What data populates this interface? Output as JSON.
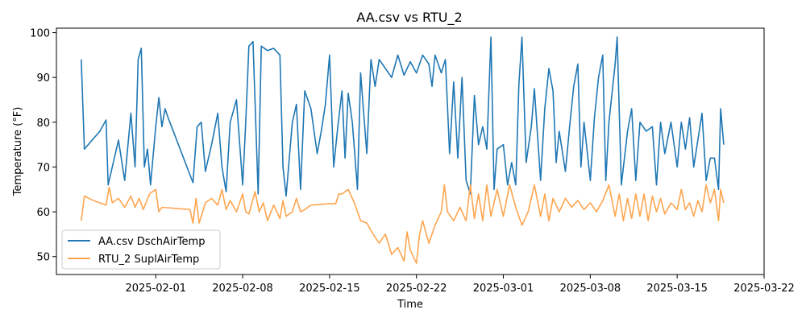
{
  "chart_data": {
    "type": "line",
    "title": "AA.csv vs RTU_2",
    "xlabel": "Time",
    "ylabel": "Temperature (°F)",
    "x_type": "date",
    "xlim": [
      "2025-01-24",
      "2025-03-22"
    ],
    "ylim": [
      46,
      101
    ],
    "x_ticks": [
      "2025-02-01",
      "2025-02-08",
      "2025-02-15",
      "2025-02-22",
      "2025-03-01",
      "2025-03-08",
      "2025-03-15",
      "2025-03-22"
    ],
    "y_ticks": [
      50,
      60,
      70,
      80,
      90,
      100
    ],
    "grid": false,
    "legend_position": "lower-left",
    "series": [
      {
        "name": "AA.csv DschAirTemp",
        "color": "#1f77b4",
        "points": [
          [
            "2025-01-26",
            94
          ],
          [
            "2025-01-26 06:00",
            74
          ],
          [
            "2025-01-27 12:00",
            78
          ],
          [
            "2025-01-28",
            80.5
          ],
          [
            "2025-01-28 04:00",
            66
          ],
          [
            "2025-01-28 12:00",
            70
          ],
          [
            "2025-01-29",
            76
          ],
          [
            "2025-01-29 12:00",
            67
          ],
          [
            "2025-01-30",
            82
          ],
          [
            "2025-01-30 08:00",
            70
          ],
          [
            "2025-01-30 14:00",
            94
          ],
          [
            "2025-01-30 20:00",
            96.5
          ],
          [
            "2025-01-31 02:00",
            70
          ],
          [
            "2025-01-31 08:00",
            74
          ],
          [
            "2025-01-31 14:00",
            66
          ],
          [
            "2025-02-01",
            79
          ],
          [
            "2025-02-01 06:00",
            85.5
          ],
          [
            "2025-02-01 12:00",
            79
          ],
          [
            "2025-02-01 18:00",
            83
          ],
          [
            "2025-02-02",
            81
          ],
          [
            "2025-02-04",
            66.5
          ],
          [
            "2025-02-04 08:00",
            79
          ],
          [
            "2025-02-04 16:00",
            80
          ],
          [
            "2025-02-05",
            69
          ],
          [
            "2025-02-05 12:00",
            75
          ],
          [
            "2025-02-06",
            82
          ],
          [
            "2025-02-06 08:00",
            70
          ],
          [
            "2025-02-06 16:00",
            64.5
          ],
          [
            "2025-02-07",
            80
          ],
          [
            "2025-02-07 12:00",
            85
          ],
          [
            "2025-02-08",
            66
          ],
          [
            "2025-02-08 06:00",
            80
          ],
          [
            "2025-02-08 12:00",
            97
          ],
          [
            "2025-02-08 20:00",
            98
          ],
          [
            "2025-02-09 06:00",
            64
          ],
          [
            "2025-02-09 12:00",
            97
          ],
          [
            "2025-02-10",
            96
          ],
          [
            "2025-02-10 12:00",
            96.5
          ],
          [
            "2025-02-11",
            95
          ],
          [
            "2025-02-11 06:00",
            70
          ],
          [
            "2025-02-11 12:00",
            63.5
          ],
          [
            "2025-02-12",
            80
          ],
          [
            "2025-02-12 08:00",
            84
          ],
          [
            "2025-02-12 16:00",
            65
          ],
          [
            "2025-02-13",
            87
          ],
          [
            "2025-02-13 12:00",
            83
          ],
          [
            "2025-02-14",
            73
          ],
          [
            "2025-02-14 08:00",
            78
          ],
          [
            "2025-02-14 16:00",
            84
          ],
          [
            "2025-02-15",
            95
          ],
          [
            "2025-02-15 08:00",
            70
          ],
          [
            "2025-02-15 16:00",
            79
          ],
          [
            "2025-02-16",
            87
          ],
          [
            "2025-02-16 06:00",
            72
          ],
          [
            "2025-02-16 12:00",
            86.5
          ],
          [
            "2025-02-16 20:00",
            80
          ],
          [
            "2025-02-17 06:00",
            65
          ],
          [
            "2025-02-17 12:00",
            91
          ],
          [
            "2025-02-18",
            73
          ],
          [
            "2025-02-18 08:00",
            94
          ],
          [
            "2025-02-18 16:00",
            88
          ],
          [
            "2025-02-19",
            94
          ],
          [
            "2025-02-19 12:00",
            92
          ],
          [
            "2025-02-20",
            90
          ],
          [
            "2025-02-20 12:00",
            95
          ],
          [
            "2025-02-21",
            90.5
          ],
          [
            "2025-02-21 12:00",
            93.5
          ],
          [
            "2025-02-22",
            91
          ],
          [
            "2025-02-22 12:00",
            95
          ],
          [
            "2025-02-23",
            93
          ],
          [
            "2025-02-23 06:00",
            88
          ],
          [
            "2025-02-23 12:00",
            95
          ],
          [
            "2025-02-24",
            91
          ],
          [
            "2025-02-24 08:00",
            94
          ],
          [
            "2025-02-24 16:00",
            73
          ],
          [
            "2025-02-25",
            89
          ],
          [
            "2025-02-25 08:00",
            72
          ],
          [
            "2025-02-25 16:00",
            90
          ],
          [
            "2025-02-26",
            67
          ],
          [
            "2025-02-26 08:00",
            64
          ],
          [
            "2025-02-26 16:00",
            86
          ],
          [
            "2025-02-27",
            75
          ],
          [
            "2025-02-27 08:00",
            79
          ],
          [
            "2025-02-27 16:00",
            74
          ],
          [
            "2025-02-28",
            99
          ],
          [
            "2025-02-28 06:00",
            65
          ],
          [
            "2025-02-28 12:00",
            74
          ],
          [
            "2025-03-01",
            75
          ],
          [
            "2025-03-01 08:00",
            66
          ],
          [
            "2025-03-01 16:00",
            71
          ],
          [
            "2025-03-02",
            66
          ],
          [
            "2025-03-02 06:00",
            88.5
          ],
          [
            "2025-03-02 12:00",
            99
          ],
          [
            "2025-03-02 20:00",
            71
          ],
          [
            "2025-03-03 06:00",
            79
          ],
          [
            "2025-03-03 12:00",
            87.5
          ],
          [
            "2025-03-04",
            67
          ],
          [
            "2025-03-04 08:00",
            83
          ],
          [
            "2025-03-04 16:00",
            92
          ],
          [
            "2025-03-05",
            87
          ],
          [
            "2025-03-05 06:00",
            71
          ],
          [
            "2025-03-05 12:00",
            78
          ],
          [
            "2025-03-06",
            69
          ],
          [
            "2025-03-06 08:00",
            79
          ],
          [
            "2025-03-06 16:00",
            88
          ],
          [
            "2025-03-07",
            93
          ],
          [
            "2025-03-07 06:00",
            70
          ],
          [
            "2025-03-07 12:00",
            80
          ],
          [
            "2025-03-08",
            67
          ],
          [
            "2025-03-08 08:00",
            81
          ],
          [
            "2025-03-08 16:00",
            90
          ],
          [
            "2025-03-09",
            95
          ],
          [
            "2025-03-09 06:00",
            67
          ],
          [
            "2025-03-09 12:00",
            80
          ],
          [
            "2025-03-10",
            93
          ],
          [
            "2025-03-10 04:00",
            99
          ],
          [
            "2025-03-10 12:00",
            66
          ],
          [
            "2025-03-11",
            78
          ],
          [
            "2025-03-11 08:00",
            83
          ],
          [
            "2025-03-11 16:00",
            67
          ],
          [
            "2025-03-12",
            80
          ],
          [
            "2025-03-12 12:00",
            78
          ],
          [
            "2025-03-13",
            79
          ],
          [
            "2025-03-13 08:00",
            66
          ],
          [
            "2025-03-13 16:00",
            80
          ],
          [
            "2025-03-14",
            73
          ],
          [
            "2025-03-14 12:00",
            80
          ],
          [
            "2025-03-15",
            70
          ],
          [
            "2025-03-15 08:00",
            80
          ],
          [
            "2025-03-15 16:00",
            74
          ],
          [
            "2025-03-16",
            81
          ],
          [
            "2025-03-16 08:00",
            70
          ],
          [
            "2025-03-16 16:00",
            76
          ],
          [
            "2025-03-17",
            82
          ],
          [
            "2025-03-17 08:00",
            67
          ],
          [
            "2025-03-17 16:00",
            72
          ],
          [
            "2025-03-18",
            72
          ],
          [
            "2025-03-18 08:00",
            65
          ],
          [
            "2025-03-18 12:00",
            83
          ],
          [
            "2025-03-18 18:00",
            75
          ]
        ]
      },
      {
        "name": "RTU_2 SuplAirTemp",
        "color": "#ffa54f",
        "points": [
          [
            "2025-01-26",
            58
          ],
          [
            "2025-01-26 06:00",
            63.5
          ],
          [
            "2025-01-27",
            62.5
          ],
          [
            "2025-01-27 12:00",
            62
          ],
          [
            "2025-01-28",
            61.5
          ],
          [
            "2025-01-28 06:00",
            65.5
          ],
          [
            "2025-01-28 12:00",
            62
          ],
          [
            "2025-01-29",
            63
          ],
          [
            "2025-01-29 12:00",
            61
          ],
          [
            "2025-01-30",
            63.5
          ],
          [
            "2025-01-30 08:00",
            61
          ],
          [
            "2025-01-30 16:00",
            63
          ],
          [
            "2025-01-31",
            60.5
          ],
          [
            "2025-01-31 12:00",
            64
          ],
          [
            "2025-02-01",
            65
          ],
          [
            "2025-02-01 06:00",
            60
          ],
          [
            "2025-02-01 12:00",
            61
          ],
          [
            "2025-02-03 18:00",
            60.5
          ],
          [
            "2025-02-04",
            57.5
          ],
          [
            "2025-02-04 06:00",
            63
          ],
          [
            "2025-02-04 12:00",
            57.5
          ],
          [
            "2025-02-05",
            62
          ],
          [
            "2025-02-05 12:00",
            63
          ],
          [
            "2025-02-06",
            61.5
          ],
          [
            "2025-02-06 08:00",
            65
          ],
          [
            "2025-02-06 16:00",
            60.5
          ],
          [
            "2025-02-07",
            62.5
          ],
          [
            "2025-02-07 12:00",
            60
          ],
          [
            "2025-02-08",
            64
          ],
          [
            "2025-02-08 06:00",
            60
          ],
          [
            "2025-02-08 12:00",
            59.5
          ],
          [
            "2025-02-09",
            64.5
          ],
          [
            "2025-02-09 08:00",
            60
          ],
          [
            "2025-02-09 16:00",
            62
          ],
          [
            "2025-02-10",
            58
          ],
          [
            "2025-02-10 12:00",
            61.5
          ],
          [
            "2025-02-11",
            58.5
          ],
          [
            "2025-02-11 06:00",
            62.5
          ],
          [
            "2025-02-11 12:00",
            59
          ],
          [
            "2025-02-12",
            60
          ],
          [
            "2025-02-12 08:00",
            63
          ],
          [
            "2025-02-12 16:00",
            60
          ],
          [
            "2025-02-13",
            60.5
          ],
          [
            "2025-02-13 12:00",
            61.5
          ],
          [
            "2025-02-15",
            61.8
          ],
          [
            "2025-02-15 12:00",
            61.8
          ],
          [
            "2025-02-15 18:00",
            64
          ],
          [
            "2025-02-16",
            64
          ],
          [
            "2025-02-16 12:00",
            65
          ],
          [
            "2025-02-17",
            62
          ],
          [
            "2025-02-17 12:00",
            58
          ],
          [
            "2025-02-18",
            57.5
          ],
          [
            "2025-02-18 12:00",
            55
          ],
          [
            "2025-02-19",
            53
          ],
          [
            "2025-02-19 12:00",
            55
          ],
          [
            "2025-02-20",
            50.5
          ],
          [
            "2025-02-20 12:00",
            52
          ],
          [
            "2025-02-21",
            49
          ],
          [
            "2025-02-21 06:00",
            55.5
          ],
          [
            "2025-02-21 12:00",
            51.5
          ],
          [
            "2025-02-22",
            48.5
          ],
          [
            "2025-02-22 06:00",
            55
          ],
          [
            "2025-02-22 12:00",
            58
          ],
          [
            "2025-02-23",
            53
          ],
          [
            "2025-02-23 12:00",
            57
          ],
          [
            "2025-02-24",
            60
          ],
          [
            "2025-02-24 06:00",
            66
          ],
          [
            "2025-02-24 12:00",
            60
          ],
          [
            "2025-02-25",
            58
          ],
          [
            "2025-02-25 12:00",
            61
          ],
          [
            "2025-02-26",
            58
          ],
          [
            "2025-02-26 08:00",
            66
          ],
          [
            "2025-02-26 16:00",
            58.5
          ],
          [
            "2025-02-27",
            64
          ],
          [
            "2025-02-27 08:00",
            58
          ],
          [
            "2025-02-27 16:00",
            66
          ],
          [
            "2025-02-28",
            59
          ],
          [
            "2025-02-28 12:00",
            65
          ],
          [
            "2025-03-01",
            59
          ],
          [
            "2025-03-01 12:00",
            66
          ],
          [
            "2025-03-02",
            61
          ],
          [
            "2025-03-02 12:00",
            57
          ],
          [
            "2025-03-03",
            60
          ],
          [
            "2025-03-03 12:00",
            66
          ],
          [
            "2025-03-04",
            59
          ],
          [
            "2025-03-04 08:00",
            64
          ],
          [
            "2025-03-04 16:00",
            58
          ],
          [
            "2025-03-05",
            63
          ],
          [
            "2025-03-05 12:00",
            60
          ],
          [
            "2025-03-06",
            63
          ],
          [
            "2025-03-06 12:00",
            61
          ],
          [
            "2025-03-07",
            62.5
          ],
          [
            "2025-03-07 12:00",
            60.5
          ],
          [
            "2025-03-08",
            62
          ],
          [
            "2025-03-08 12:00",
            60
          ],
          [
            "2025-03-09",
            62.5
          ],
          [
            "2025-03-09 12:00",
            66
          ],
          [
            "2025-03-10",
            59
          ],
          [
            "2025-03-10 08:00",
            64
          ],
          [
            "2025-03-10 16:00",
            58
          ],
          [
            "2025-03-11",
            63
          ],
          [
            "2025-03-11 08:00",
            58.5
          ],
          [
            "2025-03-11 16:00",
            64
          ],
          [
            "2025-03-12",
            59
          ],
          [
            "2025-03-12 08:00",
            64
          ],
          [
            "2025-03-12 16:00",
            58
          ],
          [
            "2025-03-13",
            63.5
          ],
          [
            "2025-03-13 08:00",
            60
          ],
          [
            "2025-03-13 16:00",
            63
          ],
          [
            "2025-03-14",
            59.5
          ],
          [
            "2025-03-14 12:00",
            62
          ],
          [
            "2025-03-15",
            60.5
          ],
          [
            "2025-03-15 08:00",
            65
          ],
          [
            "2025-03-15 16:00",
            60.5
          ],
          [
            "2025-03-16",
            62
          ],
          [
            "2025-03-16 08:00",
            59
          ],
          [
            "2025-03-16 16:00",
            62.5
          ],
          [
            "2025-03-17",
            60
          ],
          [
            "2025-03-17 08:00",
            66
          ],
          [
            "2025-03-17 16:00",
            62
          ],
          [
            "2025-03-18",
            65
          ],
          [
            "2025-03-18 08:00",
            58
          ],
          [
            "2025-03-18 12:00",
            65
          ],
          [
            "2025-03-18 18:00",
            62
          ]
        ]
      }
    ]
  }
}
